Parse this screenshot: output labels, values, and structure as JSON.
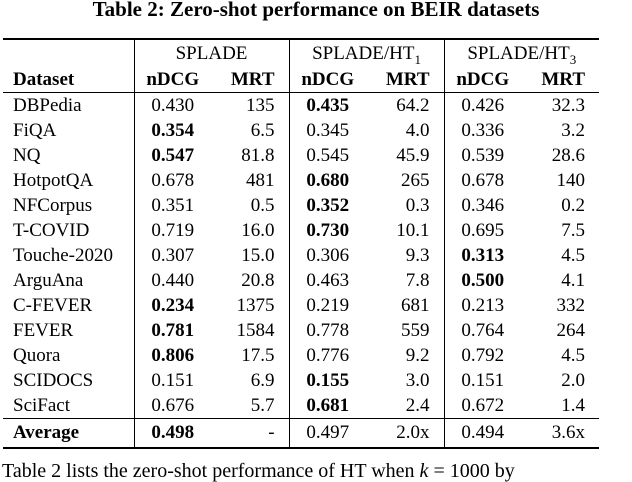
{
  "title": "Table 2: Zero-shot performance on BEIR datasets",
  "table": {
    "groups": [
      {
        "label": "SPLADE",
        "sub": ""
      },
      {
        "label": "SPLADE/HT",
        "sub": "1"
      },
      {
        "label": "SPLADE/HT",
        "sub": "3"
      }
    ],
    "col_headers": {
      "dataset": "Dataset",
      "ndcg": "nDCG",
      "mrt": "MRT"
    },
    "rows": [
      {
        "dataset": "DBPedia",
        "cells": [
          {
            "v": "0.430",
            "b": false
          },
          {
            "v": "135",
            "b": false
          },
          {
            "v": "0.435",
            "b": true
          },
          {
            "v": "64.2",
            "b": false
          },
          {
            "v": "0.426",
            "b": false
          },
          {
            "v": "32.3",
            "b": false
          }
        ]
      },
      {
        "dataset": "FiQA",
        "cells": [
          {
            "v": "0.354",
            "b": true
          },
          {
            "v": "6.5",
            "b": false
          },
          {
            "v": "0.345",
            "b": false
          },
          {
            "v": "4.0",
            "b": false
          },
          {
            "v": "0.336",
            "b": false
          },
          {
            "v": "3.2",
            "b": false
          }
        ]
      },
      {
        "dataset": "NQ",
        "cells": [
          {
            "v": "0.547",
            "b": true
          },
          {
            "v": "81.8",
            "b": false
          },
          {
            "v": "0.545",
            "b": false
          },
          {
            "v": "45.9",
            "b": false
          },
          {
            "v": "0.539",
            "b": false
          },
          {
            "v": "28.6",
            "b": false
          }
        ]
      },
      {
        "dataset": "HotpotQA",
        "cells": [
          {
            "v": "0.678",
            "b": false
          },
          {
            "v": "481",
            "b": false
          },
          {
            "v": "0.680",
            "b": true
          },
          {
            "v": "265",
            "b": false
          },
          {
            "v": "0.678",
            "b": false
          },
          {
            "v": "140",
            "b": false
          }
        ]
      },
      {
        "dataset": "NFCorpus",
        "cells": [
          {
            "v": "0.351",
            "b": false
          },
          {
            "v": "0.5",
            "b": false
          },
          {
            "v": "0.352",
            "b": true
          },
          {
            "v": "0.3",
            "b": false
          },
          {
            "v": "0.346",
            "b": false
          },
          {
            "v": "0.2",
            "b": false
          }
        ]
      },
      {
        "dataset": "T-COVID",
        "cells": [
          {
            "v": "0.719",
            "b": false
          },
          {
            "v": "16.0",
            "b": false
          },
          {
            "v": "0.730",
            "b": true
          },
          {
            "v": "10.1",
            "b": false
          },
          {
            "v": "0.695",
            "b": false
          },
          {
            "v": "7.5",
            "b": false
          }
        ]
      },
      {
        "dataset": "Touche-2020",
        "cells": [
          {
            "v": "0.307",
            "b": false
          },
          {
            "v": "15.0",
            "b": false
          },
          {
            "v": "0.306",
            "b": false
          },
          {
            "v": "9.3",
            "b": false
          },
          {
            "v": "0.313",
            "b": true
          },
          {
            "v": "4.5",
            "b": false
          }
        ]
      },
      {
        "dataset": "ArguAna",
        "cells": [
          {
            "v": "0.440",
            "b": false
          },
          {
            "v": "20.8",
            "b": false
          },
          {
            "v": "0.463",
            "b": false
          },
          {
            "v": "7.8",
            "b": false
          },
          {
            "v": "0.500",
            "b": true
          },
          {
            "v": "4.1",
            "b": false
          }
        ]
      },
      {
        "dataset": "C-FEVER",
        "cells": [
          {
            "v": "0.234",
            "b": true
          },
          {
            "v": "1375",
            "b": false
          },
          {
            "v": "0.219",
            "b": false
          },
          {
            "v": "681",
            "b": false
          },
          {
            "v": "0.213",
            "b": false
          },
          {
            "v": "332",
            "b": false
          }
        ]
      },
      {
        "dataset": "FEVER",
        "cells": [
          {
            "v": "0.781",
            "b": true
          },
          {
            "v": "1584",
            "b": false
          },
          {
            "v": "0.778",
            "b": false
          },
          {
            "v": "559",
            "b": false
          },
          {
            "v": "0.764",
            "b": false
          },
          {
            "v": "264",
            "b": false
          }
        ]
      },
      {
        "dataset": "Quora",
        "cells": [
          {
            "v": "0.806",
            "b": true
          },
          {
            "v": "17.5",
            "b": false
          },
          {
            "v": "0.776",
            "b": false
          },
          {
            "v": "9.2",
            "b": false
          },
          {
            "v": "0.792",
            "b": false
          },
          {
            "v": "4.5",
            "b": false
          }
        ]
      },
      {
        "dataset": "SCIDOCS",
        "cells": [
          {
            "v": "0.151",
            "b": false
          },
          {
            "v": "6.9",
            "b": false
          },
          {
            "v": "0.155",
            "b": true
          },
          {
            "v": "3.0",
            "b": false
          },
          {
            "v": "0.151",
            "b": false
          },
          {
            "v": "2.0",
            "b": false
          }
        ]
      },
      {
        "dataset": "SciFact",
        "cells": [
          {
            "v": "0.676",
            "b": false
          },
          {
            "v": "5.7",
            "b": false
          },
          {
            "v": "0.681",
            "b": true
          },
          {
            "v": "2.4",
            "b": false
          },
          {
            "v": "0.672",
            "b": false
          },
          {
            "v": "1.4",
            "b": false
          }
        ]
      }
    ],
    "footer": {
      "dataset": "Average",
      "dataset_bold": true,
      "cells": [
        {
          "v": "0.498",
          "b": true
        },
        {
          "v": "-",
          "b": false
        },
        {
          "v": "0.497",
          "b": false
        },
        {
          "v": "2.0x",
          "b": false
        },
        {
          "v": "0.494",
          "b": false
        },
        {
          "v": "3.6x",
          "b": false
        }
      ]
    }
  },
  "caption": {
    "before_k": "Table 2 lists the zero-shot performance of HT when ",
    "k": "k",
    "after_k": " = 1000 by"
  }
}
